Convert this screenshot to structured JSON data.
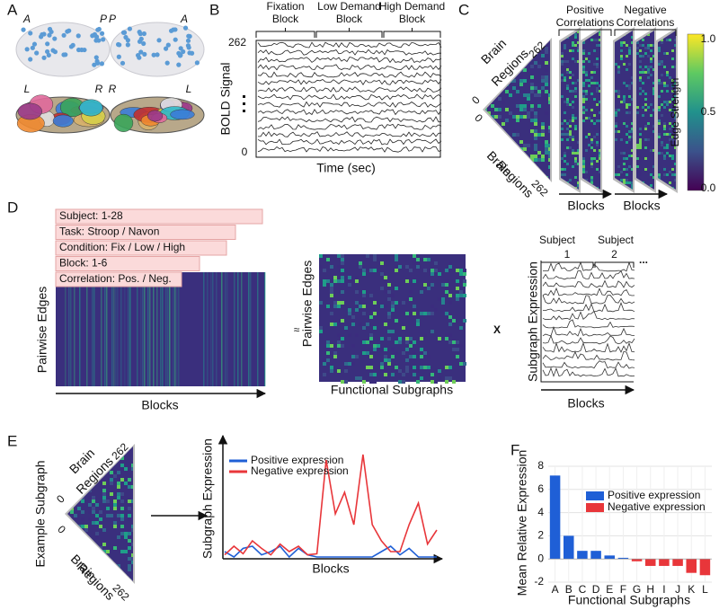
{
  "panel_labels": [
    "A",
    "B",
    "C",
    "D",
    "E",
    "F"
  ],
  "panel_a": {
    "labels": [
      "A",
      "P",
      "P",
      "A",
      "L",
      "R",
      "R",
      "L"
    ]
  },
  "panel_b": {
    "headers": [
      [
        "Fixation",
        "Block"
      ],
      [
        "Low Demand",
        "Block"
      ],
      [
        "High Demand",
        "Block"
      ]
    ],
    "y_label": "BOLD Signal",
    "x_label": "Time (sec)",
    "y_top": "262",
    "y_bottom": "0"
  },
  "panel_c": {
    "headers": [
      [
        "Positive",
        "Correlations"
      ],
      [
        "Negative",
        "Correlations"
      ]
    ],
    "axis_texts": [
      "Brain",
      "Regions",
      "262",
      "0",
      "0",
      "Brain",
      "Regions",
      "262"
    ],
    "x_labels": [
      "Blocks",
      "Blocks"
    ],
    "colorbar_label": "Edge Strength",
    "colorbar_ticks": [
      "1.0",
      "0.5",
      "0.0"
    ]
  },
  "panel_d": {
    "tags": [
      "Subject: 1-28",
      "Task: Stroop / Navon",
      "Condition: Fix / Low / High",
      "Block: 1-6",
      "Correlation: Pos. / Neg."
    ],
    "left_y_label": "Pairwise Edges",
    "left_x_label": "Blocks",
    "approx": "≈",
    "middle_y_label": "Pairwise Edges",
    "middle_x_label": "Functional Subgraphs",
    "times": "X",
    "subjects": [
      [
        "Subject",
        "1"
      ],
      [
        "Subject",
        "2"
      ]
    ],
    "ellipsis": "...",
    "right_y_label": "Subgraph Expression",
    "right_x_label": "Blocks"
  },
  "panel_e": {
    "y_label": "Example Subgraph",
    "axis_texts": [
      "Brain",
      "Regions",
      "262",
      "0",
      "0",
      "Brain",
      "Regions",
      "262"
    ]
  },
  "chart_data": [
    {
      "type": "line",
      "x_label": "Blocks",
      "y_label": "Subgraph Expression",
      "ylim": [
        0,
        1
      ],
      "series": [
        {
          "name": "Positive expression",
          "color": "#1f5fd6",
          "values": [
            0.05,
            0,
            0.08,
            0.1,
            0.02,
            0.05,
            0.1,
            0,
            0.08,
            0.02,
            0,
            0,
            0,
            0,
            0,
            0,
            0,
            0.05,
            0.1,
            0.02,
            0.08,
            0,
            0,
            0
          ]
        },
        {
          "name": "Negative expression",
          "color": "#e8363a",
          "values": [
            0.02,
            0.1,
            0.03,
            0.15,
            0.08,
            0.02,
            0.12,
            0.05,
            0.1,
            0.02,
            0.03,
            0.9,
            0.4,
            0.6,
            0.3,
            0.95,
            0.3,
            0.15,
            0.05,
            0.05,
            0.3,
            0.5,
            0.12,
            0.25
          ]
        }
      ],
      "legend": "upper left"
    },
    {
      "type": "bar",
      "x_label": "Functional Subgraphs",
      "y_label": "Mean Relative Expression",
      "categories": [
        "A",
        "B",
        "C",
        "D",
        "E",
        "F",
        "G",
        "H",
        "I",
        "J",
        "K",
        "L"
      ],
      "series": [
        {
          "name": "Positive expression",
          "color": "#1f5fd6",
          "values": [
            7.2,
            2.0,
            0.7,
            0.7,
            0.3,
            0.1,
            null,
            null,
            null,
            null,
            null,
            null
          ]
        },
        {
          "name": "Negative expression",
          "color": "#e8363a",
          "values": [
            null,
            null,
            null,
            null,
            null,
            null,
            -0.2,
            -0.6,
            -0.6,
            -0.6,
            -1.2,
            -1.4
          ]
        }
      ],
      "ylim": [
        -2,
        8
      ],
      "yticks": [
        -2,
        0,
        2,
        4,
        6,
        8
      ],
      "grid": true,
      "legend": "upper right"
    }
  ]
}
